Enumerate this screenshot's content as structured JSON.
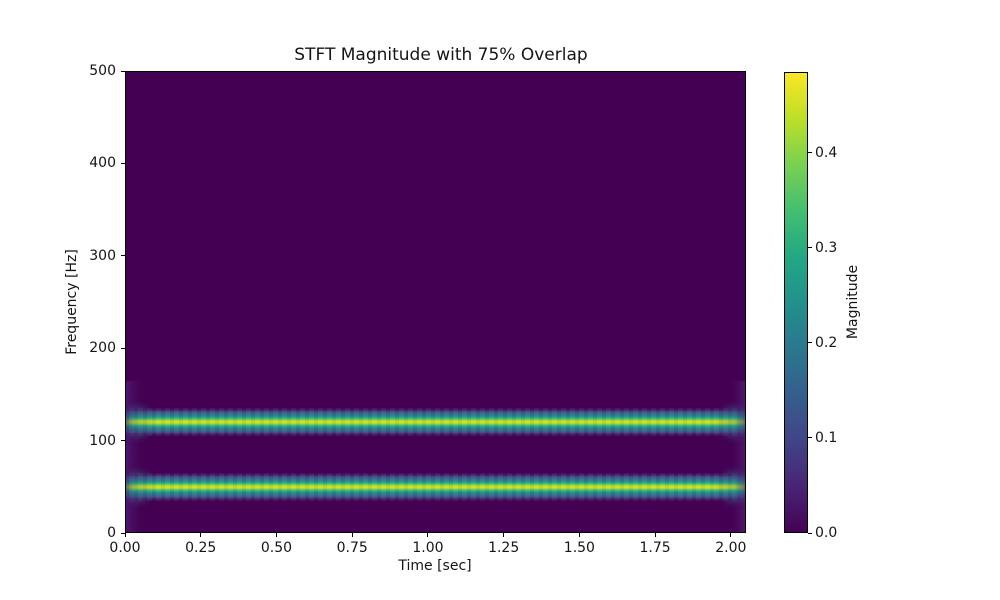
{
  "title": "STFT Magnitude with 75% Overlap",
  "axes": {
    "xlabel": "Time [sec]",
    "ylabel": "Frequency [Hz]",
    "x_tick_values": [
      0,
      0.25,
      0.5,
      0.75,
      1.0,
      1.25,
      1.5,
      1.75,
      2.0
    ],
    "x_tick_labels": [
      "0.00",
      "0.25",
      "0.50",
      "0.75",
      "1.00",
      "1.25",
      "1.50",
      "1.75",
      "2.00"
    ],
    "y_tick_values": [
      0,
      100,
      200,
      300,
      400,
      500
    ],
    "y_tick_labels": [
      "0",
      "100",
      "200",
      "300",
      "400",
      "500"
    ]
  },
  "colorbar": {
    "label": "Magnitude",
    "tick_values": [
      0.0,
      0.1,
      0.2,
      0.3,
      0.4
    ],
    "tick_labels": [
      "0.0",
      "0.1",
      "0.2",
      "0.3",
      "0.4"
    ],
    "vmin": 0.0,
    "vmax": 0.485,
    "colormap_stops": [
      "#440154",
      "#482475",
      "#414487",
      "#355f8d",
      "#2a788e",
      "#21918c",
      "#22a884",
      "#44bf70",
      "#7ad151",
      "#bddf26",
      "#fde725"
    ]
  },
  "chart_data": {
    "type": "heatmap",
    "title": "STFT Magnitude with 75% Overlap",
    "xlabel": "Time [sec]",
    "ylabel": "Frequency [Hz]",
    "colorbar_label": "Magnitude",
    "xlim": [
      0,
      2.05
    ],
    "ylim": [
      0,
      500
    ],
    "clim": [
      0.0,
      0.485
    ],
    "colormap": "viridis",
    "overlap_percent": 75,
    "background_magnitude": 0.0,
    "signal_components": [
      {
        "frequency_hz": 50,
        "peak_magnitude": 0.47,
        "time_start_sec": 0.0,
        "time_end_sec": 2.05,
        "note": "constant tone, tapers at window edges"
      },
      {
        "frequency_hz": 120,
        "peak_magnitude": 0.47,
        "time_start_sec": 0.0,
        "time_end_sec": 2.05,
        "note": "constant tone, tapers at window edges"
      }
    ],
    "x_ticks": [
      0,
      0.25,
      0.5,
      0.75,
      1.0,
      1.25,
      1.5,
      1.75,
      2.0
    ],
    "y_ticks": [
      0,
      100,
      200,
      300,
      400,
      500
    ],
    "colorbar_ticks": [
      0.0,
      0.1,
      0.2,
      0.3,
      0.4
    ],
    "legend": "none",
    "grid": false
  }
}
